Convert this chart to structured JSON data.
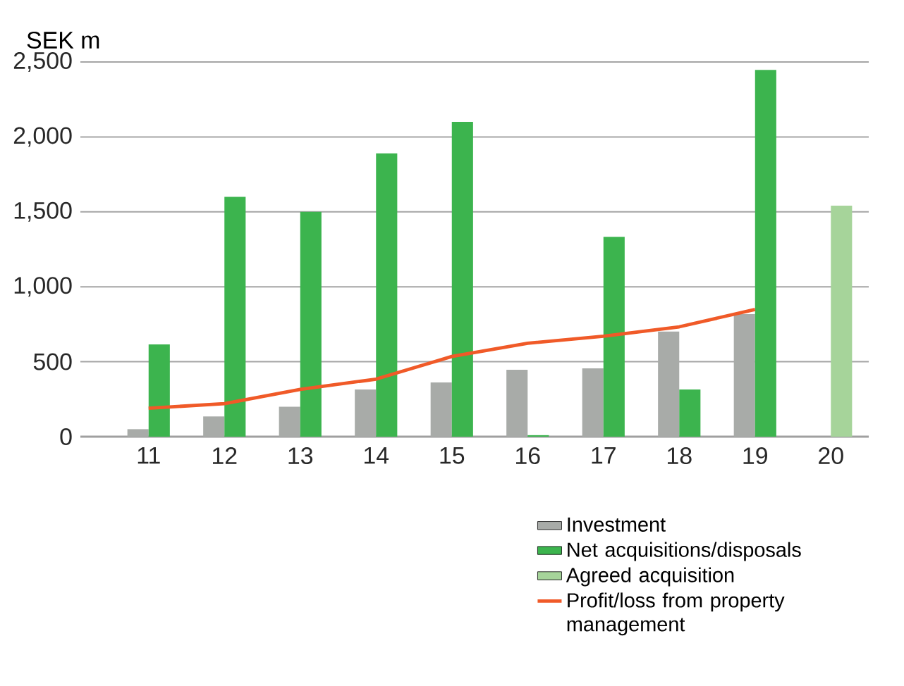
{
  "chart_data": {
    "type": "bar",
    "ylabel": "SEK m",
    "categories": [
      "11",
      "12",
      "13",
      "14",
      "15",
      "16",
      "17",
      "18",
      "19",
      "20"
    ],
    "series": [
      {
        "name": "Investment",
        "color": "#a8aba8",
        "values": [
          50,
          135,
          200,
          315,
          362,
          447,
          456,
          701,
          818,
          null
        ]
      },
      {
        "name": "Net acquisitions/disposals",
        "color": "#3cb44e",
        "values": [
          616,
          1600,
          1500,
          1890,
          2100,
          10,
          1333,
          315,
          2447,
          null
        ]
      },
      {
        "name": "Agreed acquisition",
        "color": "#a6d49a",
        "values": [
          null,
          null,
          null,
          null,
          null,
          null,
          null,
          null,
          null,
          1541
        ]
      },
      {
        "name": "Profit/loss from property management",
        "type": "line",
        "color": "#f05a28",
        "values": [
          190,
          220,
          315,
          384,
          535,
          623,
          670,
          733,
          849,
          null
        ]
      }
    ],
    "ylim": [
      0,
      2500
    ],
    "yticks": [
      0,
      500,
      {
        "value": 1000,
        "label": "1,000"
      },
      {
        "value": 1500,
        "label": "1,500"
      },
      {
        "value": 2000,
        "label": "2,000"
      },
      {
        "value": 2500,
        "label": "2,500"
      }
    ],
    "grid": "y",
    "legend": "bottom right",
    "marker": "none"
  }
}
